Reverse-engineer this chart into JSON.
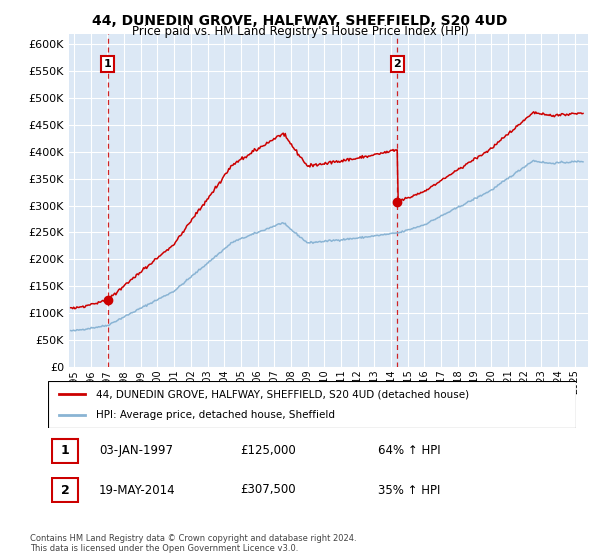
{
  "title": "44, DUNEDIN GROVE, HALFWAY, SHEFFIELD, S20 4UD",
  "subtitle": "Price paid vs. HM Land Registry's House Price Index (HPI)",
  "legend_line1": "44, DUNEDIN GROVE, HALFWAY, SHEFFIELD, S20 4UD (detached house)",
  "legend_line2": "HPI: Average price, detached house, Sheffield",
  "annotation1_label": "1",
  "annotation1_date": "03-JAN-1997",
  "annotation1_price": "£125,000",
  "annotation1_hpi": "64% ↑ HPI",
  "annotation2_label": "2",
  "annotation2_date": "19-MAY-2014",
  "annotation2_price": "£307,500",
  "annotation2_hpi": "35% ↑ HPI",
  "footnote": "Contains HM Land Registry data © Crown copyright and database right 2024.\nThis data is licensed under the Open Government Licence v3.0.",
  "sale1_year": 1997.01,
  "sale1_value": 125000,
  "sale2_year": 2014.38,
  "sale2_value": 307500,
  "hpi_color": "#8ab4d4",
  "price_color": "#cc0000",
  "dashed_color": "#cc0000",
  "background_color": "#dce8f5",
  "ylim_min": 0,
  "ylim_max": 620000,
  "yticks": [
    0,
    50000,
    100000,
    150000,
    200000,
    250000,
    300000,
    350000,
    400000,
    450000,
    500000,
    550000,
    600000
  ],
  "xmin": 1994.7,
  "xmax": 2025.8
}
